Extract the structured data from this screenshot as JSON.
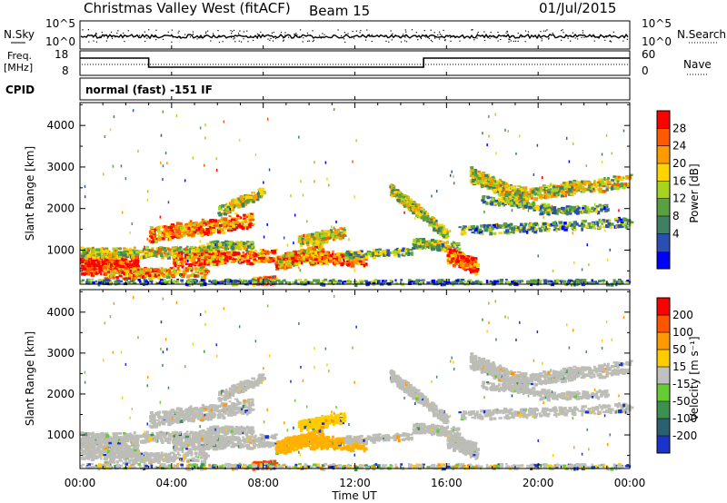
{
  "header": {
    "station": "Christmas Valley West (fitACF)",
    "beam": "Beam 15",
    "date": "01/Jul/2015"
  },
  "noise_panel": {
    "left_label": "N.Sky",
    "right_label": "N.Search",
    "left_ticks": [
      "10^5",
      "10^0"
    ],
    "right_ticks": [
      "10^5",
      "10^0"
    ]
  },
  "freq_panel": {
    "label_top": "Freq.",
    "label_bottom": "[MHz]",
    "left_ticks": [
      "18",
      "8"
    ],
    "right_ticks": [
      "60",
      "0"
    ],
    "right_label": "Nave"
  },
  "cpid": {
    "label": "CPID",
    "text": "normal (fast) -151 IF"
  },
  "x_axis": {
    "label": "Time UT",
    "ticks": [
      "00:00",
      "04:00",
      "08:00",
      "12:00",
      "16:00",
      "20:00",
      "00:00"
    ]
  },
  "chart_data": [
    {
      "type": "heatmap",
      "name": "power",
      "ylabel": "Slant Range [km]",
      "y_ticks": [
        "1000",
        "2000",
        "3000",
        "4000"
      ],
      "ylim": [
        180,
        4550
      ],
      "xlim_hours": [
        0,
        24
      ],
      "colorbar_label": "Power [dB]",
      "colorbar_ticks": [
        "28",
        "24",
        "20",
        "16",
        "12",
        "8",
        "4"
      ],
      "colorbar_colors": [
        "#0000ff",
        "#2a4fb0",
        "#3f7f64",
        "#58a040",
        "#a6d420",
        "#ffd400",
        "#ff9a00",
        "#ff5a00",
        "#ff0000"
      ],
      "colorbar_range": [
        0,
        30
      ]
    },
    {
      "type": "heatmap",
      "name": "velocity",
      "ylabel": "Slant Range [km]",
      "y_ticks": [
        "1000",
        "2000",
        "3000",
        "4000"
      ],
      "ylim": [
        180,
        4550
      ],
      "xlim_hours": [
        0,
        24
      ],
      "colorbar_label": "Velocity [m s⁻¹]",
      "colorbar_ticks": [
        "200",
        "100",
        "50",
        "15",
        "-15",
        "-50",
        "-100",
        "-200"
      ],
      "colorbar_colors": [
        "#1a33cc",
        "#2a6070",
        "#3c9050",
        "#66cc33",
        "#c0c0c0",
        "#ffcc00",
        "#ff9900",
        "#ff5500",
        "#ff0000"
      ]
    }
  ]
}
